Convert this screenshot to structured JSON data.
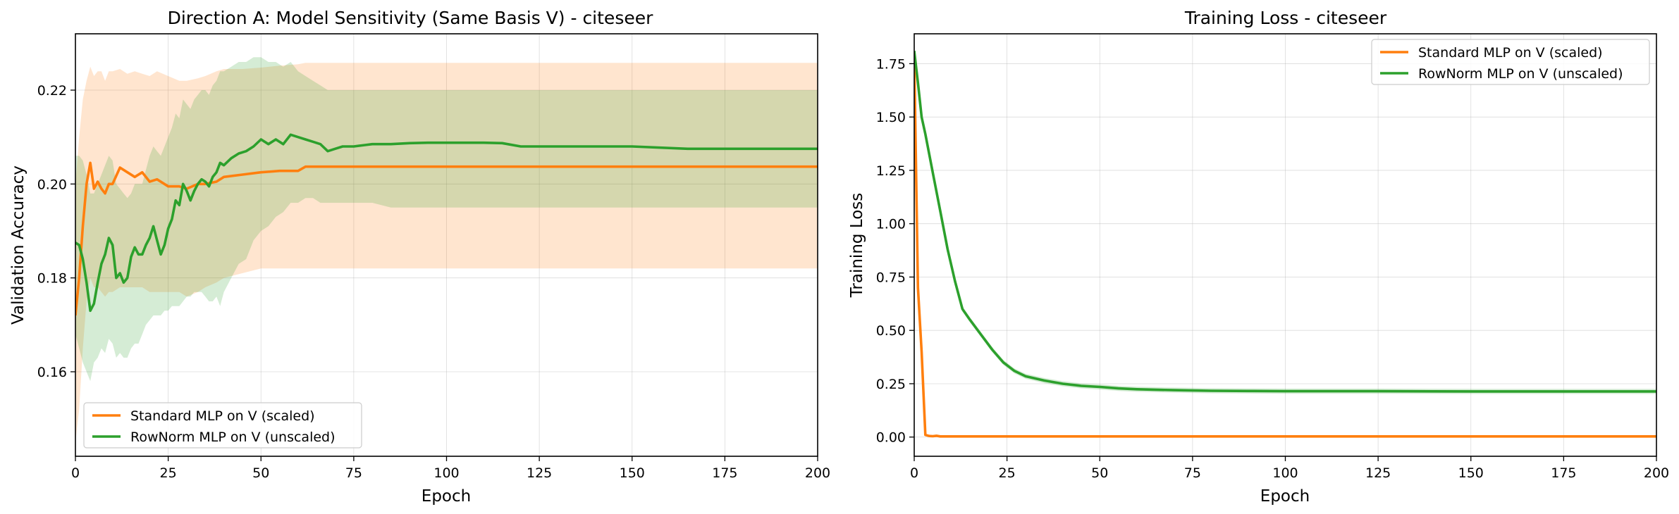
{
  "colors": {
    "standard": "#ff7f0e",
    "rownorm": "#2ca02c",
    "grid": "#b0b0b0",
    "axes": "#000000"
  },
  "chart_data": [
    {
      "type": "line",
      "title": "Direction A: Model Sensitivity (Same Basis V) - citeseer",
      "xlabel": "Epoch",
      "ylabel": "Validation Accuracy",
      "xlim": [
        0,
        200
      ],
      "ylim": [
        0.142,
        0.232
      ],
      "xticks": [
        0,
        25,
        50,
        75,
        100,
        125,
        150,
        175,
        200
      ],
      "yticks": [
        0.16,
        0.18,
        0.2,
        0.22
      ],
      "ytick_labels": [
        "0.16",
        "0.18",
        "0.20",
        "0.22"
      ],
      "grid": true,
      "legend_position": "lower-left",
      "series": [
        {
          "name": "Standard MLP on V (scaled)",
          "color_key": "standard",
          "x": [
            0,
            1,
            2,
            3,
            4,
            5,
            6,
            7,
            8,
            9,
            10,
            12,
            14,
            16,
            18,
            20,
            22,
            25,
            28,
            30,
            33,
            35,
            38,
            40,
            45,
            50,
            55,
            60,
            62,
            70,
            80,
            100,
            125,
            150,
            175,
            200
          ],
          "y": [
            0.172,
            0.18,
            0.191,
            0.2,
            0.2045,
            0.199,
            0.2005,
            0.199,
            0.198,
            0.2,
            0.2,
            0.2035,
            0.2025,
            0.2015,
            0.2025,
            0.2005,
            0.201,
            0.1995,
            0.1995,
            0.199,
            0.2,
            0.2,
            0.2005,
            0.2015,
            0.202,
            0.2025,
            0.2028,
            0.2028,
            0.2037,
            0.2037,
            0.2037,
            0.2037,
            0.2037,
            0.2037,
            0.2037,
            0.2037
          ],
          "lower": [
            0.145,
            0.152,
            0.165,
            0.175,
            0.18,
            0.178,
            0.178,
            0.177,
            0.176,
            0.177,
            0.177,
            0.178,
            0.178,
            0.178,
            0.178,
            0.177,
            0.177,
            0.177,
            0.177,
            0.176,
            0.177,
            0.178,
            0.179,
            0.18,
            0.181,
            0.182,
            0.182,
            0.182,
            0.182,
            0.182,
            0.182,
            0.182,
            0.182,
            0.182,
            0.182,
            0.182
          ],
          "upper": [
            0.2,
            0.21,
            0.218,
            0.222,
            0.225,
            0.223,
            0.224,
            0.224,
            0.222,
            0.224,
            0.224,
            0.2245,
            0.2235,
            0.224,
            0.2235,
            0.223,
            0.224,
            0.223,
            0.222,
            0.222,
            0.2225,
            0.223,
            0.224,
            0.2245,
            0.2245,
            0.2248,
            0.2252,
            0.2255,
            0.2258,
            0.2258,
            0.2258,
            0.2258,
            0.2258,
            0.2258,
            0.2258,
            0.2258
          ]
        },
        {
          "name": "RowNorm MLP on V (unscaled)",
          "color_key": "rownorm",
          "x": [
            0,
            1,
            2,
            3,
            4,
            5,
            6,
            7,
            8,
            9,
            10,
            11,
            12,
            13,
            14,
            15,
            16,
            17,
            18,
            19,
            20,
            21,
            22,
            23,
            24,
            25,
            26,
            27,
            28,
            29,
            30,
            31,
            32,
            33,
            34,
            35,
            36,
            37,
            38,
            39,
            40,
            42,
            44,
            46,
            48,
            50,
            52,
            54,
            56,
            58,
            60,
            62,
            64,
            66,
            68,
            70,
            72,
            75,
            78,
            80,
            85,
            90,
            95,
            100,
            105,
            110,
            115,
            120,
            125,
            150,
            165,
            175,
            200
          ],
          "y": [
            0.1875,
            0.187,
            0.184,
            0.179,
            0.173,
            0.1745,
            0.179,
            0.183,
            0.185,
            0.1885,
            0.187,
            0.18,
            0.181,
            0.179,
            0.18,
            0.1845,
            0.1865,
            0.185,
            0.185,
            0.187,
            0.1885,
            0.191,
            0.188,
            0.185,
            0.187,
            0.1905,
            0.1925,
            0.1965,
            0.1955,
            0.2,
            0.1985,
            0.1965,
            0.1985,
            0.2,
            0.201,
            0.2005,
            0.1995,
            0.2015,
            0.2025,
            0.2045,
            0.204,
            0.2055,
            0.2065,
            0.207,
            0.208,
            0.2095,
            0.2085,
            0.2095,
            0.2085,
            0.2105,
            0.21,
            0.2095,
            0.209,
            0.2085,
            0.207,
            0.2075,
            0.208,
            0.208,
            0.2083,
            0.2085,
            0.2085,
            0.2087,
            0.2088,
            0.2088,
            0.2088,
            0.2088,
            0.2087,
            0.208,
            0.208,
            0.208,
            0.2075,
            0.2075,
            0.2075
          ],
          "lower": [
            0.168,
            0.165,
            0.162,
            0.16,
            0.158,
            0.162,
            0.163,
            0.165,
            0.164,
            0.167,
            0.166,
            0.163,
            0.164,
            0.163,
            0.163,
            0.165,
            0.166,
            0.166,
            0.168,
            0.17,
            0.171,
            0.172,
            0.172,
            0.172,
            0.173,
            0.173,
            0.174,
            0.174,
            0.174,
            0.175,
            0.176,
            0.176,
            0.177,
            0.177,
            0.177,
            0.176,
            0.175,
            0.175,
            0.176,
            0.174,
            0.177,
            0.18,
            0.183,
            0.184,
            0.188,
            0.19,
            0.191,
            0.193,
            0.194,
            0.196,
            0.196,
            0.197,
            0.197,
            0.196,
            0.196,
            0.196,
            0.196,
            0.196,
            0.196,
            0.196,
            0.195,
            0.195,
            0.195,
            0.195,
            0.195,
            0.195,
            0.195,
            0.195,
            0.195,
            0.195,
            0.195,
            0.195,
            0.195
          ],
          "upper": [
            0.206,
            0.206,
            0.205,
            0.202,
            0.198,
            0.198,
            0.2,
            0.202,
            0.204,
            0.206,
            0.205,
            0.2,
            0.199,
            0.198,
            0.197,
            0.198,
            0.2,
            0.2,
            0.2,
            0.203,
            0.206,
            0.208,
            0.207,
            0.206,
            0.208,
            0.21,
            0.212,
            0.215,
            0.214,
            0.218,
            0.217,
            0.216,
            0.218,
            0.219,
            0.22,
            0.22,
            0.219,
            0.221,
            0.222,
            0.224,
            0.224,
            0.225,
            0.226,
            0.226,
            0.227,
            0.227,
            0.226,
            0.226,
            0.225,
            0.226,
            0.224,
            0.223,
            0.222,
            0.221,
            0.22,
            0.22,
            0.22,
            0.22,
            0.22,
            0.22,
            0.22,
            0.22,
            0.22,
            0.22,
            0.22,
            0.22,
            0.22,
            0.22,
            0.22,
            0.22,
            0.22,
            0.22,
            0.22
          ]
        }
      ]
    },
    {
      "type": "line",
      "title": "Training Loss - citeseer",
      "xlabel": "Epoch",
      "ylabel": "Training Loss",
      "xlim": [
        0,
        200
      ],
      "ylim": [
        -0.09,
        1.89
      ],
      "xticks": [
        0,
        25,
        50,
        75,
        100,
        125,
        150,
        175,
        200
      ],
      "yticks": [
        0.0,
        0.25,
        0.5,
        0.75,
        1.0,
        1.25,
        1.5,
        1.75
      ],
      "ytick_labels": [
        "0.00",
        "0.25",
        "0.50",
        "0.75",
        "1.00",
        "1.25",
        "1.50",
        "1.75"
      ],
      "grid": true,
      "legend_position": "upper-right",
      "series": [
        {
          "name": "Standard MLP on V (scaled)",
          "color_key": "standard",
          "x": [
            0,
            1,
            2,
            3,
            4,
            5,
            6,
            7,
            8,
            10,
            200
          ],
          "y": [
            1.79,
            0.7,
            0.4,
            0.01,
            0.005,
            0.004,
            0.006,
            0.003,
            0.003,
            0.003,
            0.003
          ],
          "band": 0.006
        },
        {
          "name": "RowNorm MLP on V (unscaled)",
          "color_key": "rownorm",
          "x": [
            0,
            1,
            2,
            3,
            5,
            7,
            9,
            11,
            13,
            15,
            18,
            21,
            24,
            27,
            30,
            35,
            40,
            45,
            50,
            55,
            60,
            70,
            80,
            90,
            100,
            125,
            150,
            175,
            200
          ],
          "y": [
            1.81,
            1.66,
            1.5,
            1.42,
            1.24,
            1.06,
            0.88,
            0.73,
            0.6,
            0.55,
            0.48,
            0.41,
            0.35,
            0.31,
            0.285,
            0.265,
            0.25,
            0.24,
            0.235,
            0.228,
            0.224,
            0.22,
            0.217,
            0.216,
            0.215,
            0.215,
            0.214,
            0.214,
            0.214
          ],
          "band": 0.012
        }
      ]
    }
  ]
}
